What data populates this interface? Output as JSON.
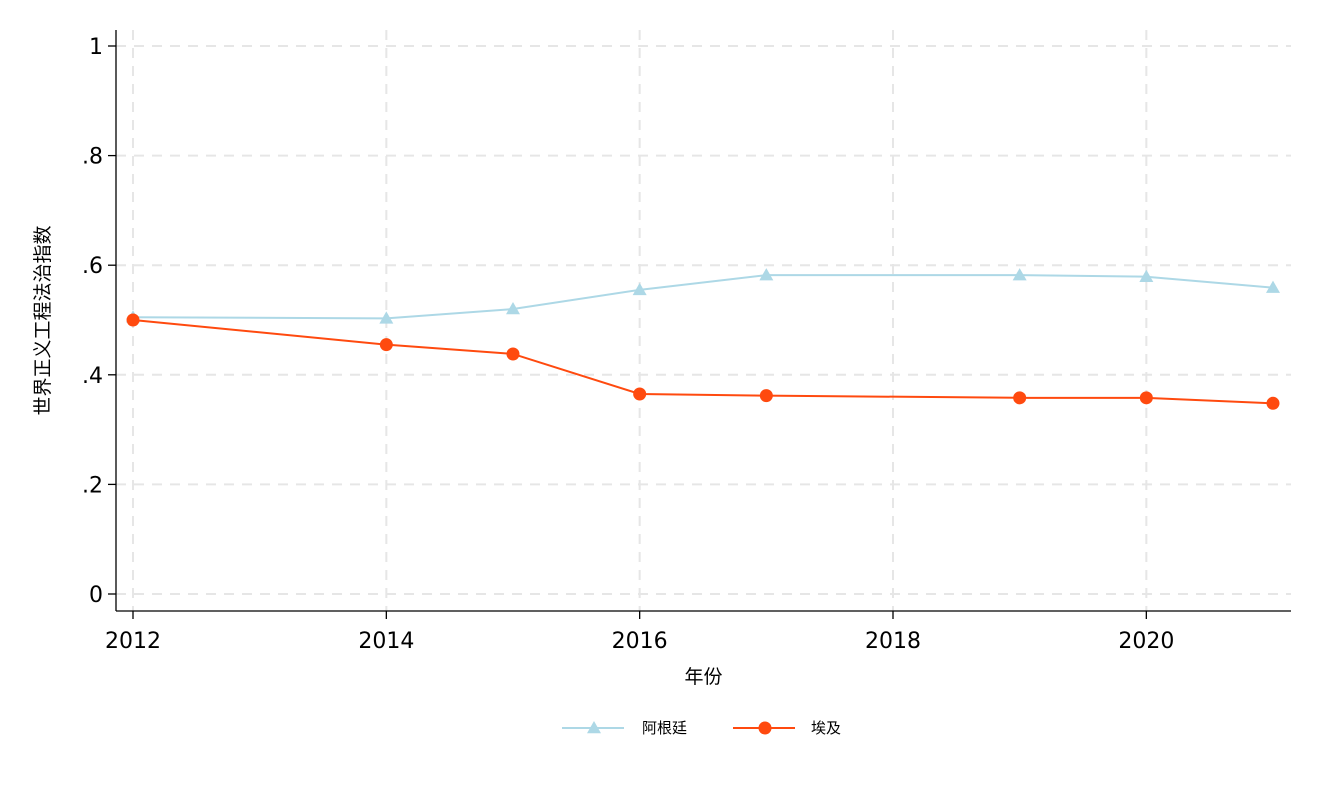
{
  "chart_data": {
    "type": "line",
    "xlabel": "年份",
    "ylabel": "世界正义工程法治指数",
    "xlim": [
      2012,
      2021
    ],
    "ylim": [
      0,
      1
    ],
    "x_ticks": [
      2012,
      2014,
      2016,
      2018,
      2020
    ],
    "y_ticks": [
      0,
      0.2,
      0.4,
      0.6,
      0.8,
      1
    ],
    "y_tick_labels": [
      "0",
      ".2",
      ".4",
      ".6",
      ".8",
      "1"
    ],
    "grid": true,
    "legend_position": "bottom",
    "series": [
      {
        "name": "阿根廷",
        "color": "#add8e6",
        "marker": "triangle",
        "points": [
          {
            "x": 2012,
            "y": 0.505
          },
          {
            "x": 2014,
            "y": 0.503
          },
          {
            "x": 2015,
            "y": 0.52
          },
          {
            "x": 2016,
            "y": 0.555
          },
          {
            "x": 2017,
            "y": 0.582
          },
          {
            "x": 2019,
            "y": 0.582
          },
          {
            "x": 2020,
            "y": 0.579
          },
          {
            "x": 2021,
            "y": 0.559
          }
        ]
      },
      {
        "name": "埃及",
        "color": "#ff4a0f",
        "marker": "circle",
        "points": [
          {
            "x": 2012,
            "y": 0.5
          },
          {
            "x": 2014,
            "y": 0.455
          },
          {
            "x": 2015,
            "y": 0.438
          },
          {
            "x": 2016,
            "y": 0.365
          },
          {
            "x": 2017,
            "y": 0.362
          },
          {
            "x": 2019,
            "y": 0.358
          },
          {
            "x": 2020,
            "y": 0.358
          },
          {
            "x": 2021,
            "y": 0.348
          }
        ]
      }
    ]
  }
}
